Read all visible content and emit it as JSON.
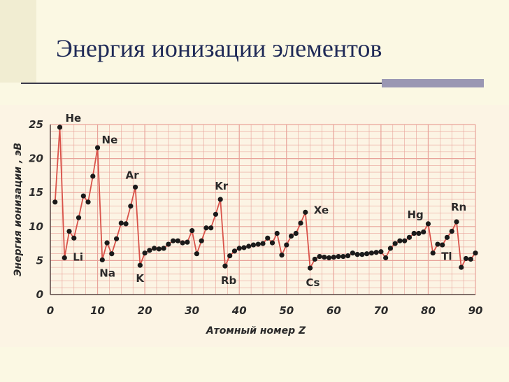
{
  "slide": {
    "title": "Энергия ионизации элементов",
    "colors": {
      "title": "#1f2a57",
      "background": "#fbf8e3",
      "chart_background": "#fcf4e4",
      "accent_block": "#9a97b3"
    }
  },
  "chart_data": {
    "type": "line",
    "title": "",
    "xlabel": "Атомный номер Z",
    "ylabel": "Энергия ионизации , эВ",
    "xlim": [
      0,
      90
    ],
    "ylim": [
      0,
      25
    ],
    "x_ticks": [
      "0",
      "10",
      "20",
      "30",
      "40",
      "50",
      "60",
      "70",
      "80",
      "90"
    ],
    "y_ticks": [
      "0",
      "5",
      "10",
      "15",
      "20",
      "25"
    ],
    "grid": true,
    "line_color": "#d9534a",
    "point_color": "#1a1a1a",
    "grid_color": "#e8a39a",
    "series": [
      {
        "x": [
          1,
          2,
          3,
          4,
          5,
          6,
          7,
          8,
          9,
          10,
          11,
          12,
          13,
          14,
          15,
          16,
          17,
          18,
          19,
          20,
          21,
          22,
          23,
          24,
          25,
          26,
          27,
          28,
          29,
          30,
          31,
          32,
          33,
          34,
          35,
          36,
          37,
          38,
          39,
          40,
          41,
          42,
          43,
          44,
          45,
          46,
          47,
          48,
          49,
          50,
          51,
          52,
          53,
          54,
          55,
          56,
          57,
          58,
          59,
          60,
          61,
          62,
          63,
          64,
          65,
          66,
          67,
          68,
          69,
          70,
          71,
          72,
          73,
          74,
          75,
          76,
          77,
          78,
          79,
          80,
          81,
          82,
          83,
          84,
          85,
          86,
          87,
          88,
          89,
          90
        ],
        "y": [
          13.6,
          24.6,
          5.4,
          9.3,
          8.3,
          11.3,
          14.5,
          13.6,
          17.4,
          21.6,
          5.1,
          7.6,
          6.0,
          8.2,
          10.5,
          10.4,
          13.0,
          15.8,
          4.3,
          6.1,
          6.5,
          6.8,
          6.7,
          6.8,
          7.4,
          7.9,
          7.9,
          7.6,
          7.7,
          9.4,
          6.0,
          7.9,
          9.8,
          9.8,
          11.8,
          14.0,
          4.2,
          5.7,
          6.4,
          6.8,
          6.9,
          7.1,
          7.3,
          7.4,
          7.5,
          8.3,
          7.6,
          9.0,
          5.8,
          7.3,
          8.6,
          9.0,
          10.5,
          12.1,
          3.9,
          5.2,
          5.6,
          5.5,
          5.4,
          5.5,
          5.6,
          5.6,
          5.7,
          6.1,
          5.9,
          5.9,
          6.0,
          6.1,
          6.2,
          6.3,
          5.4,
          6.8,
          7.5,
          7.9,
          7.9,
          8.4,
          9.0,
          9.0,
          9.2,
          10.4,
          6.1,
          7.4,
          7.3,
          8.4,
          9.3,
          10.7,
          4.0,
          5.3,
          5.2,
          6.1
        ]
      }
    ],
    "element_labels": [
      {
        "text": "He",
        "x": 2,
        "y": 24.6
      },
      {
        "text": "Ne",
        "x": 10,
        "y": 21.6
      },
      {
        "text": "Ar",
        "x": 18,
        "y": 15.8
      },
      {
        "text": "Kr",
        "x": 36,
        "y": 14.0
      },
      {
        "text": "Xe",
        "x": 54,
        "y": 12.1
      },
      {
        "text": "Hg",
        "x": 80,
        "y": 10.4
      },
      {
        "text": "Rn",
        "x": 86,
        "y": 10.7
      },
      {
        "text": "Li",
        "x": 3,
        "y": 5.4
      },
      {
        "text": "Na",
        "x": 11,
        "y": 5.1
      },
      {
        "text": "K",
        "x": 19,
        "y": 4.3
      },
      {
        "text": "Rb",
        "x": 37,
        "y": 4.2
      },
      {
        "text": "Cs",
        "x": 55,
        "y": 3.9
      },
      {
        "text": "Tl",
        "x": 81,
        "y": 6.1
      }
    ]
  }
}
